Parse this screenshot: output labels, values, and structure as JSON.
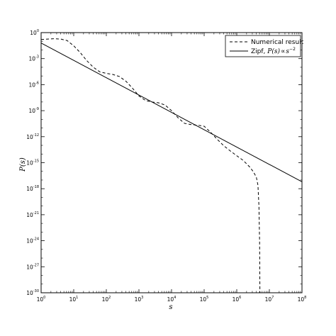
{
  "chart_data": {
    "type": "line",
    "title": "",
    "xlabel": "s",
    "ylabel": "P(s)",
    "xscale": "log",
    "yscale": "log",
    "xlim": [
      1,
      100000000
    ],
    "ylim": [
      1e-30,
      1
    ],
    "x_tick_labels": [
      {
        "base": "10",
        "exp": "0"
      },
      {
        "base": "10",
        "exp": "1"
      },
      {
        "base": "10",
        "exp": "2"
      },
      {
        "base": "10",
        "exp": "3"
      },
      {
        "base": "10",
        "exp": "4"
      },
      {
        "base": "10",
        "exp": "5"
      },
      {
        "base": "10",
        "exp": "6"
      },
      {
        "base": "10",
        "exp": "7"
      },
      {
        "base": "10",
        "exp": "8"
      }
    ],
    "y_tick_labels": [
      {
        "base": "10",
        "exp": "0"
      },
      {
        "base": "10",
        "exp": "-3"
      },
      {
        "base": "10",
        "exp": "-6"
      },
      {
        "base": "10",
        "exp": "-9"
      },
      {
        "base": "10",
        "exp": "-12"
      },
      {
        "base": "10",
        "exp": "-15"
      },
      {
        "base": "10",
        "exp": "-18"
      },
      {
        "base": "10",
        "exp": "-21"
      },
      {
        "base": "10",
        "exp": "-24"
      },
      {
        "base": "10",
        "exp": "-27"
      },
      {
        "base": "10",
        "exp": "-30"
      }
    ],
    "grid": false,
    "legend_position": "top-right",
    "series": [
      {
        "name": "Numerical result",
        "style": "dashed",
        "color": "#000000",
        "x": [
          1,
          1.6,
          2.5,
          4,
          6.3,
          10,
          15.8,
          25,
          40,
          63,
          100,
          158,
          251,
          398,
          631,
          1000,
          1585,
          2512,
          3981,
          6310,
          10000,
          15849,
          25119,
          39811,
          63096,
          100000,
          158489,
          251189,
          398107,
          630957,
          1000000,
          1584893,
          2511886,
          3162278,
          3981072,
          4466836,
          4786301,
          5011872,
          5128614
        ],
        "y": [
          0.16,
          0.18,
          0.2,
          0.18,
          0.12,
          0.03,
          0.005,
          0.0006,
          0.0001,
          3e-05,
          2e-05,
          1.5e-05,
          8.7e-06,
          2.5e-06,
          4e-07,
          5e-08,
          1.5e-08,
          1e-08,
          8e-09,
          4.5e-09,
          1e-09,
          1.5e-10,
          3.4e-11,
          2.5e-11,
          2.1e-11,
          1.6e-11,
          3.2e-12,
          5e-13,
          9e-14,
          2.3e-14,
          6.3e-15,
          1.8e-15,
          3.1e-16,
          1e-16,
          2.2e-17,
          2.5e-18,
          1e-20,
          1e-24,
          1e-30
        ]
      },
      {
        "name": "Zipf, P(s) ∝ s⁻²",
        "legend_label": {
          "text": "Zipf, ",
          "math_lhs": "P(s)",
          "math_rel": "∝",
          "math_base": "s",
          "math_exp": "−2"
        },
        "style": "solid",
        "color": "#000000",
        "x": [
          1,
          100000000
        ],
        "y": [
          0.063,
          6.3e-18
        ]
      }
    ]
  }
}
